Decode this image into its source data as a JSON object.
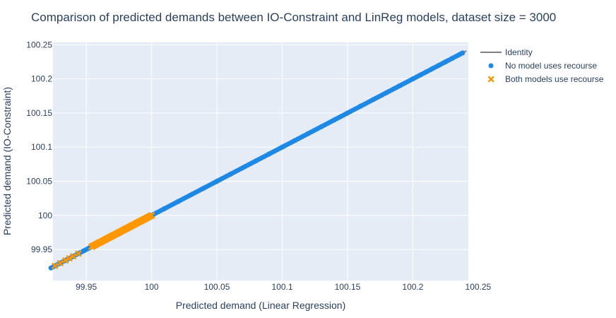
{
  "chart_data": {
    "type": "scatter",
    "title": "Comparison of predicted demands between IO-Constraint and LinReg models, dataset size = 3000",
    "xlabel": "Predicted demand (Linear Regression)",
    "ylabel": "Predicted demand (IO-Constraint)",
    "xlim": [
      99.9245,
      100.2425
    ],
    "ylim": [
      99.9045,
      100.2535
    ],
    "x_ticks": [
      99.95,
      100,
      100.05,
      100.1,
      100.15,
      100.2,
      100.25
    ],
    "x_tick_labels": [
      "99.95",
      "100",
      "100.05",
      "100.1",
      "100.15",
      "100.2",
      "100.25"
    ],
    "y_ticks": [
      99.95,
      100,
      100.05,
      100.1,
      100.15,
      100.2,
      100.25
    ],
    "y_tick_labels": [
      "99.95",
      "100",
      "100.05",
      "100.1",
      "100.15",
      "100.2",
      "100.25"
    ],
    "grid": true,
    "legend_position": "top-right outside",
    "series": [
      {
        "name": "Identity",
        "kind": "line",
        "color": "#808080",
        "x": [
          99.923,
          100.241
        ],
        "y": [
          99.923,
          100.241
        ]
      },
      {
        "name": "No model uses recourse",
        "kind": "markers",
        "marker": "circle",
        "color": "#1e88e5",
        "x_range": [
          99.923,
          100.238
        ],
        "x_sample": [
          99.923,
          99.925,
          99.93,
          99.935,
          99.94,
          99.945,
          99.948,
          99.952,
          99.96,
          99.97,
          99.98,
          99.99,
          100.0,
          100.01,
          100.02,
          100.03,
          100.04,
          100.05,
          100.06,
          100.07,
          100.08,
          100.09,
          100.1,
          100.11,
          100.12,
          100.13,
          100.14,
          100.15,
          100.16,
          100.17,
          100.18,
          100.19,
          100.2,
          100.205,
          100.21,
          100.215,
          100.22,
          100.225,
          100.23,
          100.236,
          100.238
        ],
        "relation": "y = x"
      },
      {
        "name": "Both models use recourse",
        "kind": "markers",
        "marker": "x",
        "color": "#ff9800",
        "x_range": [
          99.926,
          100.0
        ],
        "x_sample": [
          99.926,
          99.93,
          99.934,
          99.937,
          99.94,
          99.944,
          99.955,
          99.96,
          99.965,
          99.97,
          99.975,
          99.98,
          99.985,
          99.99,
          99.995,
          100.0
        ],
        "relation": "y = x"
      }
    ]
  }
}
